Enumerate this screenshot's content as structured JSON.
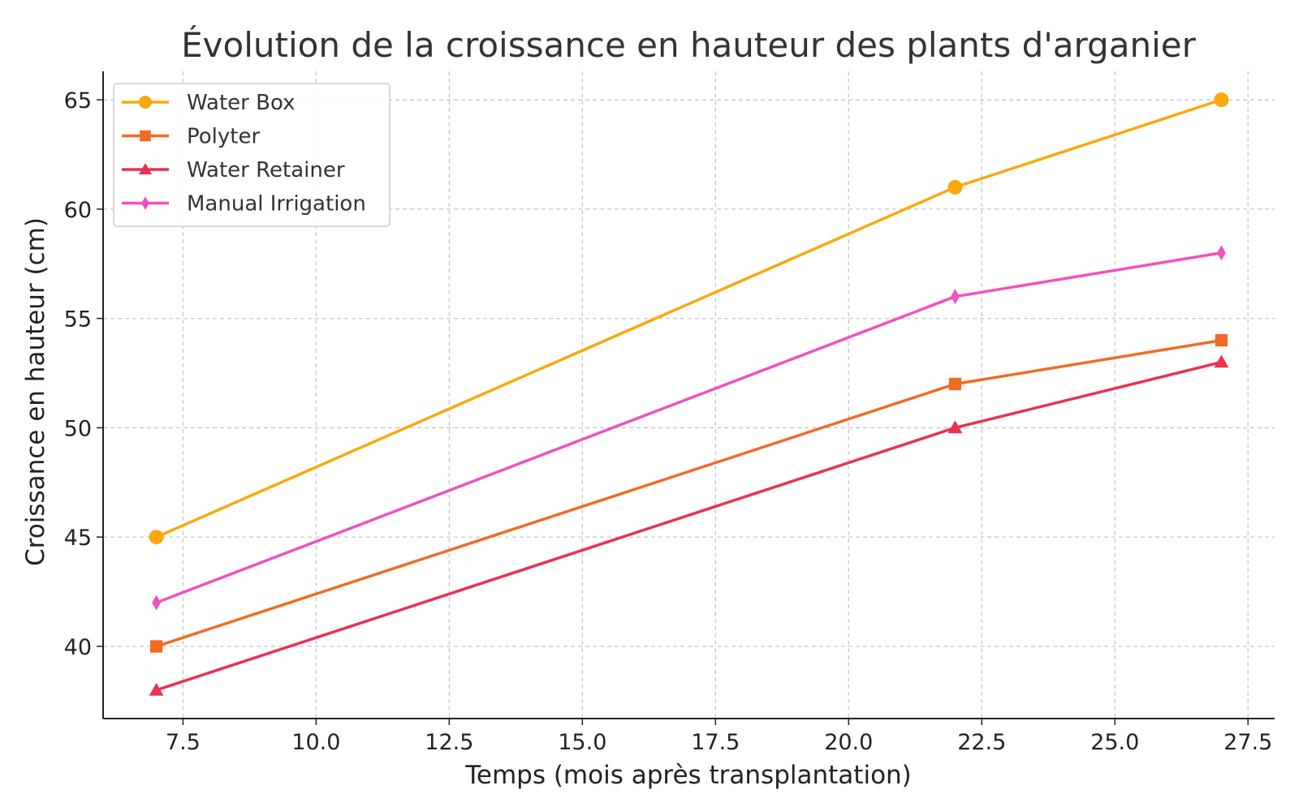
{
  "chart_data": {
    "type": "line",
    "title": "Évolution de la croissance en hauteur des plants d'arganier",
    "xlabel": "Temps (mois après transplantation)",
    "ylabel": "Croissance en hauteur (cm)",
    "x": [
      7,
      22,
      27
    ],
    "xlim": [
      6.0,
      28.0
    ],
    "ylim": [
      36.7,
      66.3
    ],
    "xticks": [
      7.5,
      10.0,
      12.5,
      15.0,
      17.5,
      20.0,
      22.5,
      25.0,
      27.5
    ],
    "xtick_labels": [
      "7.5",
      "10.0",
      "12.5",
      "15.0",
      "17.5",
      "20.0",
      "22.5",
      "25.0",
      "27.5"
    ],
    "yticks": [
      40,
      45,
      50,
      55,
      60,
      65
    ],
    "ytick_labels": [
      "40",
      "45",
      "50",
      "55",
      "60",
      "65"
    ],
    "grid": true,
    "legend_position": "top-left",
    "series": [
      {
        "name": "Water Box",
        "values": [
          45,
          61,
          65
        ],
        "color": "#f9a90e",
        "marker": "circle"
      },
      {
        "name": "Polyter",
        "values": [
          40,
          52,
          54
        ],
        "color": "#f26b24",
        "marker": "square"
      },
      {
        "name": "Water Retainer",
        "values": [
          38,
          50,
          53
        ],
        "color": "#e9324f",
        "marker": "triangle"
      },
      {
        "name": "Manual Irrigation",
        "values": [
          42,
          56,
          58
        ],
        "color": "#f052bf",
        "marker": "diamond"
      }
    ]
  }
}
